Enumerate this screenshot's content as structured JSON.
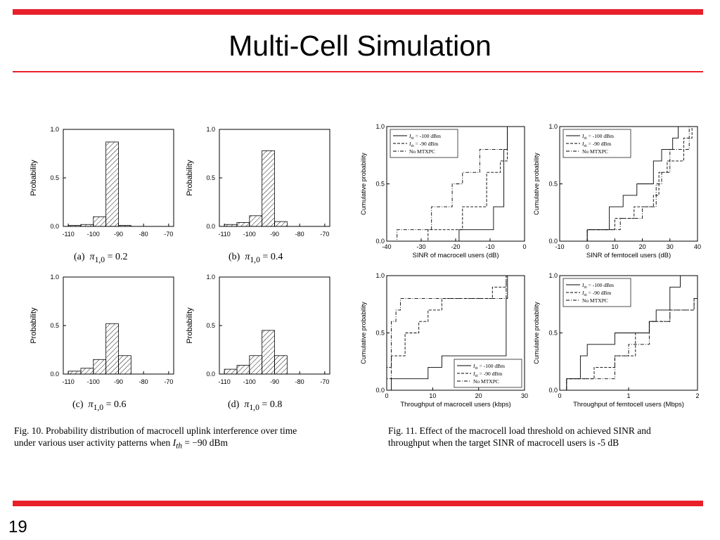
{
  "slide": {
    "title": "Multi-Cell Simulation",
    "page_number": "19",
    "accent_color": "#e8202a"
  },
  "fig10": {
    "caption": "Fig. 10.   Probability distribution of macrocell uplink interference over time under various user activity patterns when I_th = −90 dBm",
    "caption_line1": "Fig. 10.   Probability distribution of macrocell uplink interference over time",
    "caption_line2_prefix": "under various user activity patterns when ",
    "caption_line2_math": "I",
    "caption_line2_sub": "th",
    "caption_line2_suffix": " = −90 dBm"
  },
  "fig11": {
    "caption_line1": "Fig. 11.   Effect of the macrocell load threshold on achieved SINR and",
    "caption_line2": "throughput when the target SINR of macrocell users is -5 dB"
  },
  "chart_data": [
    {
      "id": "a",
      "type": "bar",
      "subcaption_label": "(a)",
      "subcaption_value": "0.2",
      "ylabel": "Probability",
      "bins": [
        -110,
        -105,
        -100,
        -95,
        -90,
        -85
      ],
      "values": [
        0.01,
        0.02,
        0.1,
        0.87,
        0.01,
        0.0
      ],
      "xticks": [
        "-110",
        "-100",
        "-90",
        "-80",
        "-70"
      ],
      "yticks": [
        "0.0",
        "0.5",
        "1.0"
      ],
      "xlim": [
        -112,
        -68
      ],
      "ylim": [
        0,
        1
      ]
    },
    {
      "id": "b",
      "type": "bar",
      "subcaption_label": "(b)",
      "subcaption_value": "0.4",
      "ylabel": "Probability",
      "bins": [
        -110,
        -105,
        -100,
        -95,
        -90,
        -85
      ],
      "values": [
        0.02,
        0.04,
        0.11,
        0.78,
        0.05,
        0.0
      ],
      "xticks": [
        "-110",
        "-100",
        "-90",
        "-80",
        "-70"
      ],
      "yticks": [
        "0.0",
        "0.5",
        "1.0"
      ],
      "xlim": [
        -112,
        -68
      ],
      "ylim": [
        0,
        1
      ]
    },
    {
      "id": "c",
      "type": "bar",
      "subcaption_label": "(c)",
      "subcaption_value": "0.6",
      "ylabel": "Probability",
      "bins": [
        -110,
        -105,
        -100,
        -95,
        -90,
        -85
      ],
      "values": [
        0.03,
        0.06,
        0.15,
        0.52,
        0.19,
        0.0
      ],
      "xticks": [
        "-110",
        "-100",
        "-90",
        "-80",
        "-70"
      ],
      "yticks": [
        "0.0",
        "0.5",
        "1.0"
      ],
      "xlim": [
        -112,
        -68
      ],
      "ylim": [
        0,
        1
      ]
    },
    {
      "id": "d",
      "type": "bar",
      "subcaption_label": "(d)",
      "subcaption_value": "0.8",
      "ylabel": "Probability",
      "bins": [
        -110,
        -105,
        -100,
        -95,
        -90,
        -85
      ],
      "values": [
        0.05,
        0.09,
        0.19,
        0.45,
        0.19,
        0.0
      ],
      "xticks": [
        "-110",
        "-100",
        "-90",
        "-80",
        "-70"
      ],
      "yticks": [
        "0.0",
        "0.5",
        "1.0"
      ],
      "xlim": [
        -112,
        -68
      ],
      "ylim": [
        0,
        1
      ]
    },
    {
      "id": "e",
      "type": "line",
      "xlabel": "SINR of macrocell users (dB)",
      "ylabel": "Cumulative probability",
      "xlim": [
        -40,
        0
      ],
      "ylim": [
        0,
        1
      ],
      "xticks": [
        [
          "-40",
          -40
        ],
        [
          "-30",
          -30
        ],
        [
          "-20",
          -20
        ],
        [
          "-10",
          -10
        ],
        [
          "0",
          0
        ]
      ],
      "yticks": [
        [
          "0.0",
          0
        ],
        [
          "0.5",
          0.5
        ],
        [
          "1.0",
          1
        ]
      ],
      "legend_position": "top-left",
      "series": [
        {
          "name": "I_th = -100 dBm",
          "style": "solid",
          "x": [
            -40,
            -19,
            -19,
            -9,
            -9,
            -6,
            -6,
            -5,
            -5,
            -5
          ],
          "y": [
            0,
            0,
            0.1,
            0.1,
            0.3,
            0.3,
            0.8,
            0.8,
            1.0,
            1.0
          ]
        },
        {
          "name": "I_th = -90 dBm",
          "style": "dashed",
          "x": [
            -40,
            -28,
            -28,
            -18,
            -18,
            -11,
            -11,
            -7,
            -7,
            -5,
            -5
          ],
          "y": [
            0,
            0,
            0.1,
            0.1,
            0.3,
            0.3,
            0.6,
            0.6,
            0.7,
            0.7,
            1.0
          ]
        },
        {
          "name": "No MTXPC",
          "style": "dashdot",
          "x": [
            -40,
            -37,
            -37,
            -27,
            -27,
            -21,
            -21,
            -18,
            -18,
            -13,
            -13,
            -5,
            -5
          ],
          "y": [
            0,
            0,
            0.1,
            0.1,
            0.3,
            0.3,
            0.5,
            0.5,
            0.6,
            0.6,
            0.8,
            0.8,
            1.0
          ]
        }
      ]
    },
    {
      "id": "f",
      "type": "line",
      "xlabel": "SINR of femtocell users (dB)",
      "ylabel": "Cumulative probability",
      "xlim": [
        -10,
        40
      ],
      "ylim": [
        0,
        1
      ],
      "xticks": [
        [
          "-10",
          -10
        ],
        [
          "0",
          0
        ],
        [
          "10",
          10
        ],
        [
          "20",
          20
        ],
        [
          "30",
          30
        ],
        [
          "40",
          40
        ]
      ],
      "yticks": [
        [
          "0.0",
          0
        ],
        [
          "0.5",
          0.5
        ],
        [
          "1.0",
          1
        ]
      ],
      "legend_position": "top-left",
      "series": [
        {
          "name": "I_th = -100 dBm",
          "style": "solid",
          "x": [
            0,
            0,
            8,
            8,
            13,
            13,
            18,
            18,
            24,
            24,
            27,
            27,
            31,
            31,
            33,
            33,
            40
          ],
          "y": [
            0,
            0.1,
            0.1,
            0.3,
            0.3,
            0.4,
            0.4,
            0.5,
            0.5,
            0.7,
            0.7,
            0.8,
            0.8,
            0.9,
            0.9,
            1.0,
            1.0
          ]
        },
        {
          "name": "I_th = -90 dBm",
          "style": "dashed",
          "x": [
            0,
            0,
            10,
            10,
            17,
            17,
            24,
            24,
            26,
            26,
            29,
            29,
            35,
            35,
            38,
            38,
            40
          ],
          "y": [
            0,
            0.1,
            0.1,
            0.2,
            0.2,
            0.3,
            0.3,
            0.4,
            0.4,
            0.6,
            0.6,
            0.7,
            0.7,
            0.9,
            0.9,
            1.0,
            1.0
          ]
        },
        {
          "name": "No MTXPC",
          "style": "dashdot",
          "x": [
            0,
            0,
            12,
            12,
            20,
            20,
            25,
            25,
            27,
            27,
            30,
            30,
            37,
            37,
            40
          ],
          "y": [
            0,
            0.1,
            0.1,
            0.2,
            0.2,
            0.3,
            0.3,
            0.5,
            0.5,
            0.6,
            0.6,
            0.8,
            0.8,
            1.0,
            1.0
          ]
        }
      ]
    },
    {
      "id": "g",
      "type": "line",
      "xlabel": "Throughput of macrocell users (kbps)",
      "ylabel": "Cumulative probability",
      "xlim": [
        0,
        30
      ],
      "ylim": [
        0,
        1
      ],
      "xticks": [
        [
          "0",
          0
        ],
        [
          "10",
          10
        ],
        [
          "20",
          20
        ],
        [
          "30",
          30
        ]
      ],
      "yticks": [
        [
          "0.0",
          0
        ],
        [
          "0.5",
          0.5
        ],
        [
          "1.0",
          1
        ]
      ],
      "legend_position": "bottom-right",
      "series": [
        {
          "name": "I_th = -100 dBm",
          "style": "solid",
          "x": [
            0,
            1,
            1,
            9,
            9,
            12,
            12,
            26,
            26,
            26.3,
            26.3,
            30
          ],
          "y": [
            0,
            0,
            0.1,
            0.1,
            0.2,
            0.2,
            0.3,
            0.3,
            0.8,
            0.8,
            1.0,
            1.0
          ]
        },
        {
          "name": "I_th = -90 dBm",
          "style": "dashed",
          "x": [
            0,
            0,
            1,
            1,
            4,
            4,
            7,
            7,
            9,
            9,
            12,
            12,
            23,
            23,
            26,
            26,
            30
          ],
          "y": [
            0,
            0.2,
            0.2,
            0.3,
            0.3,
            0.5,
            0.5,
            0.6,
            0.6,
            0.7,
            0.7,
            0.8,
            0.8,
            0.9,
            0.9,
            1.0,
            1.0
          ]
        },
        {
          "name": "No MTXPC",
          "style": "dashdot",
          "x": [
            0,
            0,
            1,
            1,
            2,
            2,
            3,
            3,
            26,
            26,
            30
          ],
          "y": [
            0,
            0.1,
            0.1,
            0.6,
            0.6,
            0.7,
            0.7,
            0.8,
            0.8,
            1.0,
            1.0
          ]
        }
      ]
    },
    {
      "id": "h",
      "type": "line",
      "xlabel": "Throughput of femtocell users (Mbps)",
      "ylabel": "Cumulative probability",
      "xlim": [
        0,
        2
      ],
      "ylim": [
        0,
        1
      ],
      "xticks": [
        [
          "0",
          0
        ],
        [
          "1",
          1
        ],
        [
          "2",
          2
        ]
      ],
      "yticks": [
        [
          "0.0",
          0
        ],
        [
          "0.5",
          0.5
        ],
        [
          "1.0",
          1
        ]
      ],
      "legend_position": "top-left",
      "series": [
        {
          "name": "I_th = -100 dBm",
          "style": "solid",
          "x": [
            0,
            0.1,
            0.1,
            0.3,
            0.3,
            0.4,
            0.4,
            0.8,
            0.8,
            1.3,
            1.3,
            1.4,
            1.4,
            1.6,
            1.6,
            1.75,
            1.75,
            2
          ],
          "y": [
            0,
            0,
            0.1,
            0.1,
            0.3,
            0.3,
            0.4,
            0.4,
            0.5,
            0.5,
            0.6,
            0.6,
            0.7,
            0.7,
            0.9,
            0.9,
            1.0,
            1.0
          ]
        },
        {
          "name": "I_th = -90 dBm",
          "style": "dashed",
          "x": [
            0,
            0.1,
            0.1,
            0.5,
            0.5,
            0.8,
            0.8,
            1.1,
            1.1,
            1.3,
            1.3,
            1.6,
            1.6,
            1.95,
            1.95,
            2
          ],
          "y": [
            0,
            0,
            0.1,
            0.1,
            0.2,
            0.2,
            0.3,
            0.3,
            0.5,
            0.5,
            0.6,
            0.6,
            0.7,
            0.7,
            0.8,
            0.8
          ]
        },
        {
          "name": "No MTXPC",
          "style": "dashdot",
          "x": [
            0,
            0.1,
            0.1,
            0.8,
            0.8,
            1.0,
            1.0,
            1.3,
            1.3,
            1.6,
            1.6,
            1.95,
            1.95,
            2
          ],
          "y": [
            0,
            0,
            0.1,
            0.1,
            0.3,
            0.3,
            0.4,
            0.4,
            0.6,
            0.6,
            0.7,
            0.7,
            0.8,
            0.8
          ]
        }
      ]
    }
  ]
}
